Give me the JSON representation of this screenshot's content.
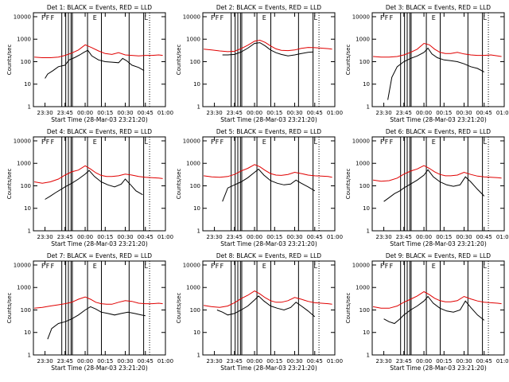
{
  "figure": {
    "ylabel": "Counts/sec",
    "xlabel": "Start Time (28-Mar-03 23:21:20)",
    "x_ticks": [
      "23:30",
      "23:45",
      "00:00",
      "00:15",
      "00:30",
      "00:45",
      "01:00"
    ],
    "y_ticks": [
      "1",
      "10",
      "100",
      "1000",
      "10000"
    ],
    "event_color": "#000000",
    "lld_color": "#e00000",
    "marker_letters": [
      "F",
      "F",
      "F",
      "E",
      "L"
    ]
  },
  "chart_data": [
    {
      "type": "line",
      "title": "Det 1: BLACK = Events, RED = LLD",
      "xlim": [
        "23:21:20",
        "01:00"
      ],
      "ylim": [
        1,
        15000
      ],
      "yscale": "log",
      "series": [
        {
          "name": "BLACK = Events",
          "x": [
            "23:30",
            "23:32",
            "23:36",
            "23:40",
            "23:45",
            "23:48",
            "23:52",
            "23:56",
            "23:59",
            "00:02",
            "00:05",
            "00:10",
            "00:15",
            "00:20",
            "00:25",
            "00:28",
            "00:31",
            "00:35",
            "00:40",
            "00:44"
          ],
          "values": [
            18,
            28,
            40,
            60,
            70,
            120,
            150,
            200,
            260,
            320,
            180,
            120,
            100,
            95,
            90,
            140,
            110,
            70,
            55,
            40
          ]
        },
        {
          "name": "RED = LLD",
          "x": [
            "23:22",
            "23:28",
            "23:34",
            "23:40",
            "23:45",
            "23:50",
            "23:55",
            "00:00",
            "00:05",
            "00:10",
            "00:15",
            "00:20",
            "00:25",
            "00:30",
            "00:35",
            "00:40",
            "00:45",
            "00:50",
            "00:55",
            "00:58"
          ],
          "values": [
            160,
            150,
            150,
            160,
            190,
            240,
            330,
            560,
            420,
            300,
            230,
            210,
            250,
            200,
            190,
            180,
            190,
            190,
            200,
            190
          ]
        }
      ]
    },
    {
      "type": "line",
      "title": "Det 2: BLACK = Events, RED = LLD",
      "xlim": [
        "23:21:20",
        "01:00"
      ],
      "ylim": [
        1,
        15000
      ],
      "yscale": "log",
      "series": [
        {
          "name": "BLACK = Events",
          "x": [
            "23:36",
            "23:40",
            "23:45",
            "23:50",
            "23:55",
            "00:00",
            "00:04",
            "00:08",
            "00:12",
            "00:16",
            "00:20",
            "00:25",
            "00:30",
            "00:35",
            "00:40",
            "00:44"
          ],
          "values": [
            200,
            200,
            210,
            270,
            400,
            650,
            700,
            500,
            330,
            250,
            210,
            180,
            200,
            230,
            260,
            270
          ]
        },
        {
          "name": "RED = LLD",
          "x": [
            "23:22",
            "23:28",
            "23:34",
            "23:40",
            "23:45",
            "23:50",
            "23:55",
            "00:00",
            "00:04",
            "00:08",
            "00:12",
            "00:16",
            "00:20",
            "00:25",
            "00:30",
            "00:35",
            "00:40",
            "00:45",
            "00:50",
            "00:55",
            "00:58"
          ],
          "values": [
            360,
            330,
            300,
            280,
            290,
            380,
            540,
            820,
            900,
            720,
            500,
            370,
            320,
            310,
            330,
            390,
            430,
            420,
            400,
            380,
            360
          ]
        }
      ]
    },
    {
      "type": "line",
      "title": "Det 3: BLACK = Events, RED = LLD",
      "xlim": [
        "23:21:20",
        "01:00"
      ],
      "ylim": [
        1,
        15000
      ],
      "yscale": "log",
      "series": [
        {
          "name": "BLACK = Events",
          "x": [
            "23:33",
            "23:36",
            "23:40",
            "23:45",
            "23:50",
            "23:55",
            "00:00",
            "00:03",
            "00:06",
            "00:10",
            "00:15",
            "00:20",
            "00:25",
            "00:30",
            "00:35",
            "00:40",
            "00:45"
          ],
          "values": [
            2,
            20,
            60,
            100,
            140,
            180,
            260,
            400,
            220,
            150,
            120,
            110,
            100,
            80,
            60,
            50,
            35
          ]
        },
        {
          "name": "RED = LLD",
          "x": [
            "23:22",
            "23:28",
            "23:34",
            "23:40",
            "23:45",
            "23:50",
            "23:55",
            "00:00",
            "00:04",
            "00:08",
            "00:12",
            "00:16",
            "00:20",
            "00:25",
            "00:30",
            "00:35",
            "00:40",
            "00:45",
            "00:50",
            "00:55",
            "00:58"
          ],
          "values": [
            170,
            160,
            160,
            170,
            200,
            260,
            360,
            650,
            560,
            360,
            260,
            230,
            230,
            260,
            220,
            200,
            190,
            190,
            200,
            180,
            170
          ]
        }
      ]
    },
    {
      "type": "line",
      "title": "Det 4: BLACK = Events, RED = LLD",
      "xlim": [
        "23:21:20",
        "01:00"
      ],
      "ylim": [
        1,
        15000
      ],
      "yscale": "log",
      "series": [
        {
          "name": "BLACK = Events",
          "x": [
            "23:30",
            "23:34",
            "23:38",
            "23:42",
            "23:45",
            "23:50",
            "23:55",
            "00:00",
            "00:03",
            "00:07",
            "00:12",
            "00:17",
            "00:22",
            "00:27",
            "00:30",
            "00:34",
            "00:38",
            "00:43"
          ],
          "values": [
            25,
            35,
            50,
            70,
            90,
            130,
            200,
            330,
            480,
            260,
            150,
            110,
            90,
            120,
            200,
            110,
            60,
            40
          ]
        },
        {
          "name": "RED = LLD",
          "x": [
            "23:22",
            "23:28",
            "23:34",
            "23:40",
            "23:45",
            "23:50",
            "23:55",
            "00:00",
            "00:04",
            "00:08",
            "00:12",
            "00:16",
            "00:20",
            "00:25",
            "00:30",
            "00:35",
            "00:40",
            "00:45",
            "00:50",
            "00:55",
            "00:58"
          ],
          "values": [
            150,
            130,
            150,
            200,
            300,
            420,
            500,
            780,
            560,
            380,
            290,
            260,
            260,
            280,
            330,
            300,
            260,
            240,
            230,
            220,
            210
          ]
        }
      ]
    },
    {
      "type": "line",
      "title": "Det 5: BLACK = Events, RED = LLD",
      "xlim": [
        "23:21:20",
        "01:00"
      ],
      "ylim": [
        1,
        15000
      ],
      "yscale": "log",
      "series": [
        {
          "name": "BLACK = Events",
          "x": [
            "23:36",
            "23:40",
            "23:45",
            "23:50",
            "23:55",
            "00:00",
            "00:03",
            "00:07",
            "00:12",
            "00:17",
            "00:22",
            "00:27",
            "00:31",
            "00:35",
            "00:40",
            "00:45"
          ],
          "values": [
            20,
            80,
            110,
            150,
            230,
            400,
            550,
            300,
            170,
            130,
            110,
            120,
            180,
            130,
            90,
            60
          ]
        },
        {
          "name": "RED = LLD",
          "x": [
            "23:22",
            "23:28",
            "23:34",
            "23:40",
            "23:45",
            "23:50",
            "23:55",
            "00:00",
            "00:04",
            "00:08",
            "00:12",
            "00:16",
            "00:20",
            "00:25",
            "00:30",
            "00:35",
            "00:40",
            "00:45",
            "00:50",
            "00:55",
            "00:58"
          ],
          "values": [
            280,
            250,
            240,
            260,
            320,
            460,
            600,
            880,
            700,
            480,
            350,
            300,
            290,
            320,
            400,
            350,
            300,
            280,
            270,
            260,
            240
          ]
        }
      ]
    },
    {
      "type": "line",
      "title": "Det 6: BLACK = Events, RED = LLD",
      "xlim": [
        "23:21:20",
        "01:00"
      ],
      "ylim": [
        1,
        15000
      ],
      "yscale": "log",
      "series": [
        {
          "name": "BLACK = Events",
          "x": [
            "23:30",
            "23:34",
            "23:38",
            "23:42",
            "23:45",
            "23:50",
            "23:55",
            "00:00",
            "00:03",
            "00:07",
            "00:12",
            "00:17",
            "00:22",
            "00:27",
            "00:31",
            "00:35",
            "00:40",
            "00:45"
          ],
          "values": [
            20,
            30,
            45,
            60,
            80,
            120,
            180,
            300,
            520,
            250,
            150,
            110,
            95,
            110,
            250,
            150,
            70,
            35
          ]
        },
        {
          "name": "RED = LLD",
          "x": [
            "23:22",
            "23:28",
            "23:34",
            "23:40",
            "23:45",
            "23:50",
            "23:55",
            "00:00",
            "00:04",
            "00:08",
            "00:12",
            "00:16",
            "00:20",
            "00:25",
            "00:30",
            "00:35",
            "00:40",
            "00:45",
            "00:50",
            "00:55",
            "00:58"
          ],
          "values": [
            180,
            160,
            170,
            220,
            330,
            450,
            560,
            800,
            600,
            420,
            320,
            280,
            280,
            300,
            400,
            320,
            270,
            250,
            240,
            230,
            220
          ]
        }
      ]
    },
    {
      "type": "line",
      "title": "Det 7: BLACK = Events, RED = LLD",
      "xlim": [
        "23:21:20",
        "01:00"
      ],
      "ylim": [
        1,
        15000
      ],
      "yscale": "log",
      "series": [
        {
          "name": "BLACK = Events",
          "x": [
            "23:32",
            "23:35",
            "23:40",
            "23:45",
            "23:50",
            "23:55",
            "00:00",
            "00:04",
            "00:08",
            "00:12",
            "00:17",
            "00:22",
            "00:27",
            "00:32",
            "00:37",
            "00:42",
            "00:45"
          ],
          "values": [
            5,
            15,
            25,
            30,
            40,
            60,
            100,
            140,
            110,
            80,
            70,
            60,
            70,
            80,
            70,
            60,
            55
          ]
        },
        {
          "name": "RED = LLD",
          "x": [
            "23:22",
            "23:28",
            "23:34",
            "23:40",
            "23:45",
            "23:50",
            "23:55",
            "00:00",
            "00:04",
            "00:08",
            "00:12",
            "00:16",
            "00:20",
            "00:25",
            "00:30",
            "00:35",
            "00:40",
            "00:45",
            "00:50",
            "00:55",
            "00:58"
          ],
          "values": [
            120,
            130,
            150,
            170,
            190,
            220,
            300,
            380,
            300,
            220,
            190,
            180,
            180,
            220,
            260,
            240,
            200,
            190,
            190,
            200,
            190
          ]
        }
      ]
    },
    {
      "type": "line",
      "title": "Det 8: BLACK = Events, RED = LLD",
      "xlim": [
        "23:21:20",
        "01:00"
      ],
      "ylim": [
        1,
        15000
      ],
      "yscale": "log",
      "series": [
        {
          "name": "BLACK = Events",
          "x": [
            "23:32",
            "23:36",
            "23:40",
            "23:45",
            "23:50",
            "23:55",
            "00:00",
            "00:03",
            "00:07",
            "00:12",
            "00:17",
            "00:22",
            "00:27",
            "00:31",
            "00:35",
            "00:40",
            "00:45"
          ],
          "values": [
            100,
            80,
            60,
            70,
            100,
            150,
            280,
            420,
            250,
            150,
            120,
            100,
            130,
            220,
            150,
            90,
            50
          ]
        },
        {
          "name": "RED = LLD",
          "x": [
            "23:22",
            "23:28",
            "23:34",
            "23:40",
            "23:45",
            "23:50",
            "23:55",
            "00:00",
            "00:04",
            "00:08",
            "00:12",
            "00:16",
            "00:20",
            "00:25",
            "00:30",
            "00:35",
            "00:40",
            "00:45",
            "00:50",
            "00:55",
            "00:58"
          ],
          "values": [
            160,
            140,
            130,
            150,
            210,
            320,
            450,
            700,
            520,
            350,
            260,
            220,
            220,
            260,
            360,
            300,
            240,
            210,
            200,
            190,
            180
          ]
        }
      ]
    },
    {
      "type": "line",
      "title": "Det 9: BLACK = Events, RED = LLD",
      "xlim": [
        "23:21:20",
        "01:00"
      ],
      "ylim": [
        1,
        15000
      ],
      "yscale": "log",
      "series": [
        {
          "name": "BLACK = Events",
          "x": [
            "23:30",
            "23:34",
            "23:38",
            "23:42",
            "23:45",
            "23:50",
            "23:55",
            "00:00",
            "00:03",
            "00:07",
            "00:12",
            "00:17",
            "00:22",
            "00:27",
            "00:31",
            "00:35",
            "00:40",
            "00:45"
          ],
          "values": [
            40,
            30,
            25,
            40,
            60,
            100,
            150,
            250,
            400,
            200,
            120,
            90,
            80,
            100,
            250,
            130,
            60,
            35
          ]
        },
        {
          "name": "RED = LLD",
          "x": [
            "23:22",
            "23:28",
            "23:34",
            "23:40",
            "23:45",
            "23:50",
            "23:55",
            "00:00",
            "00:04",
            "00:08",
            "00:12",
            "00:16",
            "00:20",
            "00:25",
            "00:30",
            "00:35",
            "00:40",
            "00:45",
            "00:50",
            "00:55",
            "00:58"
          ],
          "values": [
            140,
            120,
            120,
            150,
            220,
            300,
            420,
            650,
            480,
            330,
            260,
            230,
            230,
            260,
            400,
            310,
            250,
            220,
            210,
            200,
            190
          ]
        }
      ]
    }
  ]
}
